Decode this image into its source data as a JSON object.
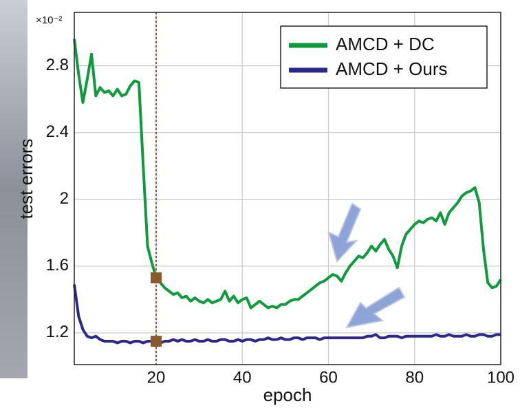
{
  "chart_data": {
    "type": "line",
    "exponent_label": "×10⁻²",
    "x_label": "epoch",
    "y_label": "test errors",
    "x": [
      1,
      2,
      3,
      4,
      5,
      6,
      7,
      8,
      9,
      10,
      11,
      12,
      13,
      14,
      15,
      16,
      17,
      18,
      19,
      20,
      21,
      22,
      23,
      24,
      25,
      26,
      27,
      28,
      29,
      30,
      31,
      32,
      33,
      34,
      35,
      36,
      37,
      38,
      39,
      40,
      41,
      42,
      43,
      44,
      45,
      46,
      47,
      48,
      49,
      50,
      51,
      52,
      53,
      54,
      55,
      56,
      57,
      58,
      59,
      60,
      61,
      62,
      63,
      64,
      65,
      66,
      67,
      68,
      69,
      70,
      71,
      72,
      73,
      74,
      75,
      76,
      77,
      78,
      79,
      80,
      81,
      82,
      83,
      84,
      85,
      86,
      87,
      88,
      89,
      90,
      91,
      92,
      93,
      94,
      95,
      96,
      97,
      98,
      99,
      100
    ],
    "series": [
      {
        "name": "AMCD + DC",
        "color": "#0f9a3c",
        "values": [
          2.96,
          2.75,
          2.58,
          2.72,
          2.87,
          2.62,
          2.67,
          2.64,
          2.65,
          2.62,
          2.66,
          2.62,
          2.63,
          2.68,
          2.71,
          2.7,
          2.2,
          1.72,
          1.62,
          1.53,
          1.5,
          1.47,
          1.45,
          1.43,
          1.44,
          1.41,
          1.42,
          1.39,
          1.41,
          1.39,
          1.38,
          1.4,
          1.38,
          1.39,
          1.4,
          1.45,
          1.39,
          1.42,
          1.38,
          1.4,
          1.41,
          1.35,
          1.37,
          1.39,
          1.37,
          1.35,
          1.36,
          1.35,
          1.37,
          1.37,
          1.39,
          1.4,
          1.4,
          1.42,
          1.44,
          1.46,
          1.48,
          1.5,
          1.51,
          1.53,
          1.55,
          1.54,
          1.51,
          1.56,
          1.6,
          1.63,
          1.66,
          1.65,
          1.68,
          1.72,
          1.69,
          1.73,
          1.76,
          1.7,
          1.66,
          1.59,
          1.72,
          1.79,
          1.82,
          1.85,
          1.87,
          1.86,
          1.88,
          1.89,
          1.87,
          1.92,
          1.85,
          1.92,
          1.95,
          1.98,
          2.02,
          2.04,
          2.05,
          2.07,
          1.98,
          1.7,
          1.5,
          1.47,
          1.48,
          1.52
        ]
      },
      {
        "name": "AMCD + Ours",
        "color": "#2b2a8c",
        "values": [
          1.49,
          1.3,
          1.22,
          1.18,
          1.17,
          1.18,
          1.16,
          1.15,
          1.15,
          1.15,
          1.14,
          1.15,
          1.15,
          1.14,
          1.15,
          1.15,
          1.14,
          1.15,
          1.15,
          1.15,
          1.14,
          1.15,
          1.15,
          1.16,
          1.15,
          1.16,
          1.15,
          1.15,
          1.16,
          1.15,
          1.15,
          1.16,
          1.15,
          1.15,
          1.16,
          1.16,
          1.15,
          1.15,
          1.16,
          1.15,
          1.16,
          1.16,
          1.15,
          1.16,
          1.16,
          1.17,
          1.16,
          1.16,
          1.17,
          1.16,
          1.16,
          1.17,
          1.17,
          1.16,
          1.17,
          1.17,
          1.17,
          1.16,
          1.17,
          1.17,
          1.17,
          1.17,
          1.17,
          1.17,
          1.17,
          1.17,
          1.17,
          1.17,
          1.18,
          1.18,
          1.19,
          1.17,
          1.17,
          1.18,
          1.18,
          1.18,
          1.17,
          1.18,
          1.18,
          1.18,
          1.18,
          1.18,
          1.18,
          1.18,
          1.19,
          1.18,
          1.18,
          1.19,
          1.18,
          1.18,
          1.18,
          1.19,
          1.18,
          1.18,
          1.19,
          1.19,
          1.18,
          1.18,
          1.19,
          1.19
        ]
      }
    ],
    "highlight": {
      "x": 20,
      "values": [
        1.53,
        1.15
      ],
      "color": "#8b5a2b"
    },
    "xlim": [
      1,
      100
    ],
    "ylim": [
      1.01,
      3.12
    ],
    "xticks": [
      20,
      40,
      60,
      80,
      100
    ],
    "yticks": [
      1.2,
      1.6,
      2,
      2.4,
      2.8
    ],
    "grid": true,
    "legend": "upper right"
  }
}
